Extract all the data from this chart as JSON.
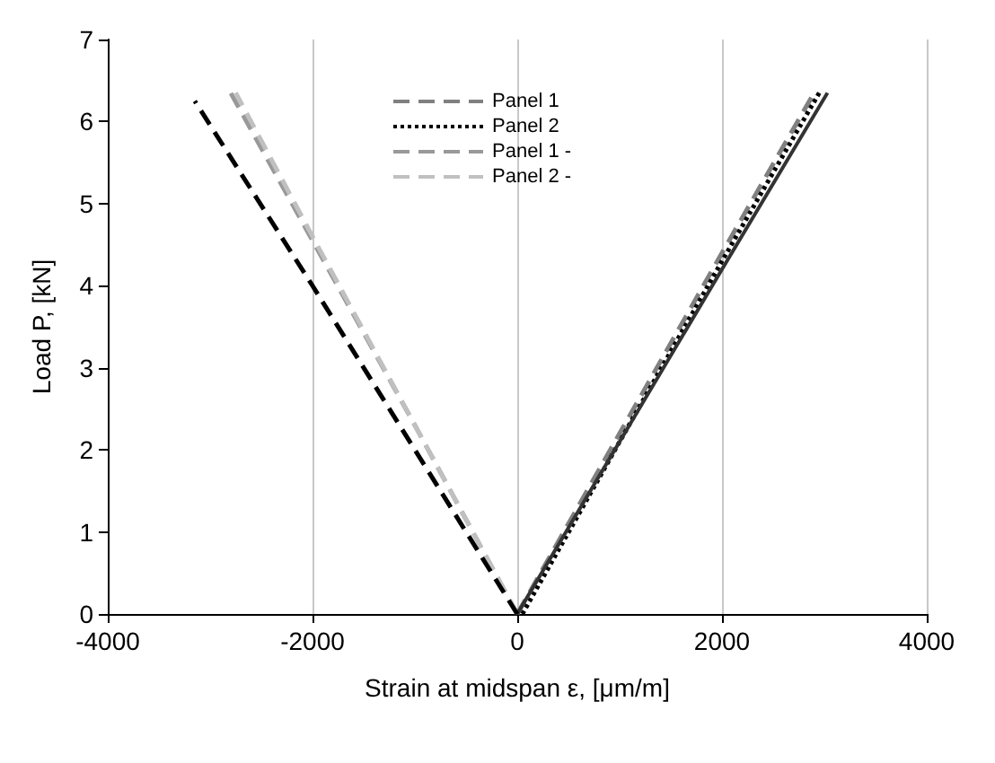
{
  "chart_data": {
    "type": "line",
    "xlabel": "Strain at midspan ε, [μm/m]",
    "ylabel": "Load P, [kN]",
    "xlim": [
      -4000,
      4000
    ],
    "xticks": [
      -4000,
      -2000,
      0,
      2000,
      4000
    ],
    "ylim": [
      0,
      7
    ],
    "yticks": [
      0,
      1,
      2,
      3,
      4,
      5,
      6,
      7
    ],
    "grid": "x",
    "legend": "top",
    "marker": "none",
    "series": [
      {
        "name": "Panel 1",
        "color": "#808080",
        "line_style": "dashed",
        "x": [
          0,
          1000,
          2000,
          2900
        ],
        "values": [
          0,
          2.2,
          4.4,
          6.35
        ]
      },
      {
        "name": "Panel 2",
        "color": "#000000",
        "line_style": "dotted",
        "x": [
          50,
          1000,
          2000,
          2950
        ],
        "values": [
          0,
          2.1,
          4.3,
          6.35
        ]
      },
      {
        "name": "Panel 1 -",
        "color": "#999999",
        "line_style": "dashed",
        "x": [
          0,
          -1000,
          -2000,
          -2800
        ],
        "values": [
          0,
          2.3,
          4.55,
          6.35
        ]
      },
      {
        "name": "Panel 2 -",
        "color": "#c0c0c0",
        "line_style": "dashed",
        "x": [
          0,
          -1000,
          -2000,
          -2750
        ],
        "values": [
          0,
          2.3,
          4.6,
          6.35
        ]
      },
      {
        "color": "#333333",
        "line_style": "solid",
        "x": [
          0,
          1000,
          2000,
          3030
        ],
        "values": [
          0,
          2.1,
          4.2,
          6.35
        ]
      },
      {
        "color": "#000000",
        "line_style": "dashed",
        "x": [
          0,
          -1000,
          -2000,
          -3150
        ],
        "values": [
          0,
          2.0,
          4.0,
          6.25
        ]
      }
    ]
  }
}
